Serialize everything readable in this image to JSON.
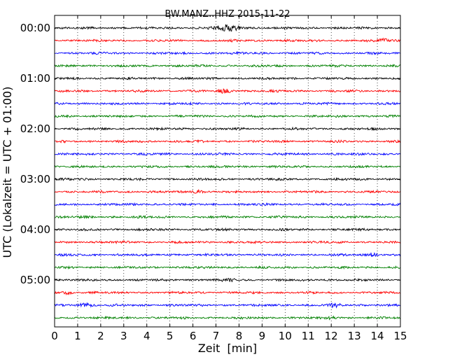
{
  "chart_data": {
    "type": "line",
    "title": "BW.MANZ..HHZ 2015-11-22",
    "xlabel": "Zeit  [min]",
    "ylabel": "UTC (Lokalzeit = UTC + 01:00)",
    "xlim": [
      0,
      15
    ],
    "x_ticks": [
      "0",
      "1",
      "2",
      "3",
      "4",
      "5",
      "6",
      "7",
      "8",
      "9",
      "10",
      "11",
      "12",
      "13",
      "14",
      "15"
    ],
    "y_ticks": [
      "00:00",
      "01:00",
      "02:00",
      "03:00",
      "04:00",
      "05:00"
    ],
    "grid": "vertical dotted",
    "trace_colors": [
      "#000000",
      "#ff0000",
      "#0000ff",
      "#008000"
    ],
    "trace_count": 24,
    "trace_interval_min": 15,
    "events": [
      {
        "trace": 0,
        "center_min": 7.5,
        "width_min": 1.2,
        "level": 2.6
      },
      {
        "trace": 1,
        "center_min": 14.3,
        "width_min": 0.5,
        "level": 1.8
      },
      {
        "trace": 5,
        "center_min": 7.4,
        "width_min": 0.6,
        "level": 1.8
      },
      {
        "trace": 13,
        "center_min": 6.2,
        "width_min": 0.5,
        "level": 1.5
      },
      {
        "trace": 18,
        "center_min": 13.8,
        "width_min": 0.5,
        "level": 1.8
      },
      {
        "trace": 20,
        "center_min": 7.6,
        "width_min": 0.5,
        "level": 1.6
      },
      {
        "trace": 21,
        "center_min": 0.6,
        "width_min": 0.4,
        "level": 1.5
      },
      {
        "trace": 22,
        "center_min": 1.3,
        "width_min": 0.6,
        "level": 1.7
      },
      {
        "trace": 22,
        "center_min": 12.2,
        "width_min": 0.5,
        "level": 1.6
      },
      {
        "trace": 23,
        "center_min": 12.0,
        "width_min": 0.4,
        "level": 1.5
      }
    ]
  }
}
